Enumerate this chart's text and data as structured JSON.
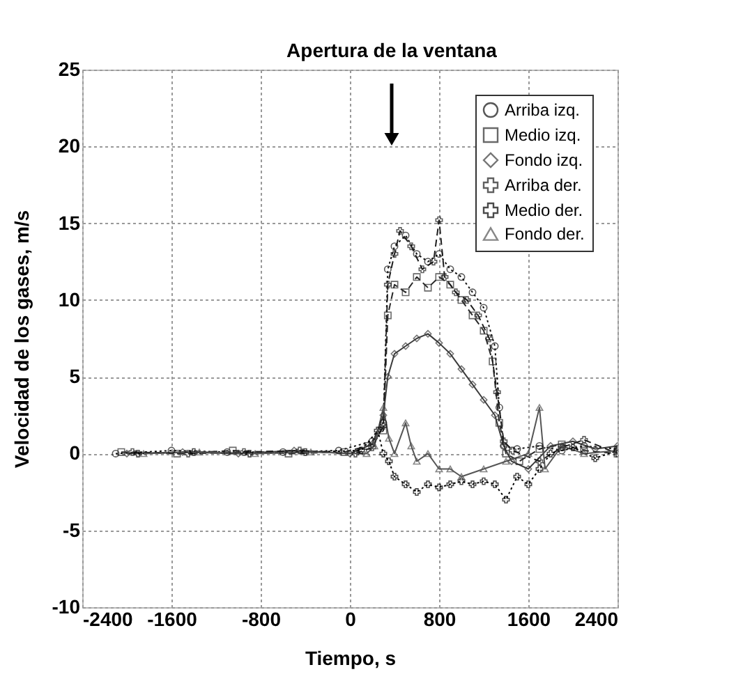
{
  "chart_data": {
    "type": "line",
    "xlabel": "Tiempo, s",
    "ylabel": "Velocidad de los gases, m/s",
    "annotations": [
      "Apertura de la ventana"
    ],
    "xlim": [
      -2400,
      2400
    ],
    "xticks": [
      -2400,
      -1600,
      -800,
      0,
      800,
      1600,
      2400
    ],
    "ylim": [
      -10,
      25
    ],
    "yticks": [
      -10,
      -5,
      0,
      5,
      10,
      15,
      20,
      25
    ],
    "grid": true,
    "legend": "top right",
    "series": [
      {
        "name": "Arriba izq.",
        "color": "#111111",
        "marker": "circle",
        "line_style": "dotted",
        "x": [
          -2100,
          -1600,
          -1100,
          -600,
          -100,
          200,
          300,
          340,
          400,
          500,
          600,
          700,
          800,
          900,
          1000,
          1100,
          1200,
          1300,
          1340,
          1380,
          1500,
          1700,
          1900,
          2100,
          2400
        ],
        "values": [
          0,
          0.2,
          0.1,
          0.1,
          0.2,
          0.8,
          2,
          12,
          13.5,
          14.2,
          13,
          12.5,
          13,
          12,
          11.5,
          10.5,
          9.5,
          7,
          3,
          0.5,
          0.3,
          0.5,
          0.2,
          0.5,
          0.3
        ]
      },
      {
        "name": "Medio izq.",
        "color": "#2a2a2a",
        "marker": "square",
        "line_style": "dashed",
        "x": [
          -2050,
          -1550,
          -1050,
          -550,
          -50,
          160,
          300,
          340,
          400,
          500,
          600,
          700,
          800,
          900,
          1000,
          1100,
          1200,
          1280,
          1340,
          1400,
          1520,
          1700,
          1900,
          2100,
          2400
        ],
        "values": [
          0.1,
          0,
          0.2,
          0,
          0.1,
          0.5,
          1.5,
          9,
          11,
          10.5,
          11.5,
          10.8,
          11.5,
          11,
          10,
          9,
          8,
          6,
          2,
          0,
          -0.5,
          0.3,
          0.6,
          0.2,
          0
        ]
      },
      {
        "name": "Fondo izq.",
        "color": "#3c3c3c",
        "marker": "diamond",
        "line_style": "solid",
        "x": [
          -2000,
          -1500,
          -1000,
          -500,
          0,
          200,
          300,
          340,
          400,
          500,
          600,
          700,
          800,
          900,
          1000,
          1100,
          1200,
          1300,
          1380,
          1450,
          1600,
          1800,
          2000,
          2200,
          2400
        ],
        "values": [
          0,
          0.1,
          0,
          0.2,
          0,
          0.6,
          2.5,
          5,
          6.5,
          7,
          7.5,
          7.8,
          7.2,
          6.5,
          5.5,
          4.5,
          3.5,
          2.5,
          0.5,
          -0.5,
          -1,
          0.5,
          0.8,
          0.3,
          0.5
        ]
      },
      {
        "name": "Arriba der.",
        "color": "#1e1e1e",
        "marker": "cross",
        "line_style": "dashed",
        "x": [
          -1950,
          -1450,
          -950,
          -450,
          50,
          200,
          300,
          340,
          400,
          450,
          550,
          650,
          750,
          800,
          850,
          950,
          1050,
          1150,
          1250,
          1320,
          1380,
          1460,
          1700,
          1900,
          2100,
          2400
        ],
        "values": [
          0.1,
          0,
          0.1,
          0.2,
          0,
          0.4,
          1.8,
          11,
          13,
          14.5,
          13.5,
          12,
          12.5,
          15.2,
          11.5,
          10.5,
          10,
          9,
          7.5,
          4,
          0.8,
          0.2,
          -0.5,
          0.4,
          0.9,
          0
        ]
      },
      {
        "name": "Medio der.",
        "color": "#000000",
        "marker": "cross",
        "line_style": "dotted",
        "x": [
          -1900,
          -1400,
          -900,
          -400,
          100,
          250,
          300,
          350,
          400,
          500,
          600,
          700,
          800,
          900,
          1000,
          1100,
          1200,
          1300,
          1400,
          1500,
          1600,
          1700,
          1800,
          2000,
          2200,
          2400
        ],
        "values": [
          0,
          0.1,
          0,
          0.1,
          0.2,
          1.5,
          0,
          -0.5,
          -1.5,
          -2,
          -2.5,
          -2,
          -2.2,
          -2,
          -1.8,
          -2,
          -1.8,
          -2,
          -3,
          -1.5,
          -2,
          -1,
          0,
          0.4,
          -0.3,
          0.2
        ]
      },
      {
        "name": "Fondo der.",
        "color": "#555555",
        "marker": "triangle",
        "line_style": "solid",
        "x": [
          -1850,
          -1350,
          -850,
          -350,
          150,
          220,
          300,
          350,
          400,
          500,
          550,
          600,
          700,
          800,
          900,
          1000,
          1200,
          1400,
          1600,
          1700,
          1750,
          1900,
          2100,
          2400
        ],
        "values": [
          0,
          0.1,
          0,
          0.1,
          0,
          0.5,
          3,
          1,
          0,
          2,
          0.5,
          -0.5,
          0,
          -1,
          -1,
          -1.5,
          -1,
          -0.5,
          0,
          3,
          -1,
          0.5,
          0,
          0.2
        ]
      }
    ]
  }
}
